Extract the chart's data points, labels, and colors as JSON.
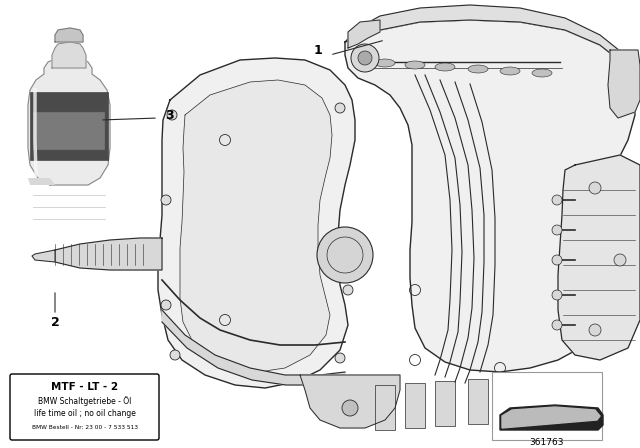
{
  "bg_color": "#ffffff",
  "fig_width": 6.4,
  "fig_height": 4.48,
  "dpi": 100,
  "box_text_line1": "MTF - LT - 2",
  "box_text_line2": "BMW Schaltgetriebe - Öl",
  "box_text_line3": "life time oil ; no oil change",
  "box_text_line4": "BMW Bestell - Nr: 23 00 - 7 533 513",
  "part_number": "361763",
  "label1": "1",
  "label2": "2",
  "label3": "3",
  "line_color": "#2a2a2a",
  "light_fill": "#f0f0f0",
  "mid_fill": "#d8d8d8",
  "dark_fill": "#555555",
  "border_color": "#000000",
  "text_color": "#000000"
}
